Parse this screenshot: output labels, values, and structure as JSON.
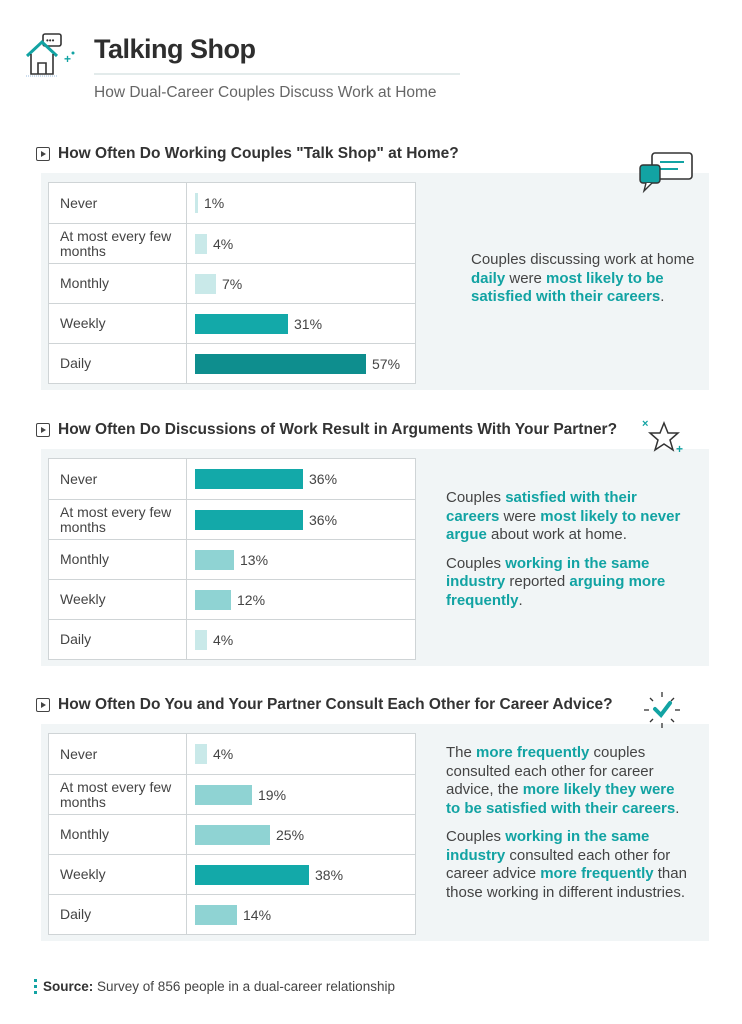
{
  "header": {
    "title": "Talking Shop",
    "subtitle": "How Dual-Career Couples Discuss Work at Home"
  },
  "colors": {
    "accent": "#12a3a3",
    "dark_bar": "#0e8e8e",
    "mid_bar": "#13a9a9",
    "light_bar": "#8fd3d3",
    "pale_bar": "#c9e9e9",
    "panel": "#f1f5f6"
  },
  "chart_data": [
    {
      "type": "bar",
      "orientation": "horizontal",
      "title": "How Often Do Working Couples \"Talk Shop\" at Home?",
      "categories": [
        "Never",
        "At most every few months",
        "Monthly",
        "Weekly",
        "Daily"
      ],
      "values": [
        1,
        4,
        7,
        31,
        57
      ],
      "unit": "%",
      "xlim": [
        0,
        60
      ],
      "icon": "chat-bubbles-icon",
      "note": [
        [
          {
            "t": "Couples discussing work at home "
          },
          {
            "t": "daily",
            "h": true
          },
          {
            "t": " were "
          },
          {
            "t": "most likely to be satisfied with their careers",
            "h": true
          },
          {
            "t": "."
          }
        ]
      ]
    },
    {
      "type": "bar",
      "orientation": "horizontal",
      "title": "How Often Do Discussions of Work Result in Arguments With Your Partner?",
      "categories": [
        "Never",
        "At most every few months",
        "Monthly",
        "Weekly",
        "Daily"
      ],
      "values": [
        36,
        36,
        13,
        12,
        4
      ],
      "unit": "%",
      "xlim": [
        0,
        60
      ],
      "icon": "star-icon",
      "note": [
        [
          {
            "t": "Couples "
          },
          {
            "t": "satisfied with their careers",
            "h": true
          },
          {
            "t": " were "
          },
          {
            "t": "most likely to never argue",
            "h": true
          },
          {
            "t": " about work at home."
          }
        ],
        [
          {
            "t": "Couples "
          },
          {
            "t": "working in the same industry",
            "h": true
          },
          {
            "t": " reported "
          },
          {
            "t": "arguing more frequently",
            "h": true
          },
          {
            "t": "."
          }
        ]
      ]
    },
    {
      "type": "bar",
      "orientation": "horizontal",
      "title": "How Often Do You and Your Partner Consult Each Other for Career Advice?",
      "categories": [
        "Never",
        "At most every few months",
        "Monthly",
        "Weekly",
        "Daily"
      ],
      "values": [
        4,
        19,
        25,
        38,
        14
      ],
      "unit": "%",
      "xlim": [
        0,
        60
      ],
      "icon": "checkmark-icon",
      "note": [
        [
          {
            "t": "The "
          },
          {
            "t": "more frequently",
            "h": true
          },
          {
            "t": " couples consulted each other for career advice, the "
          },
          {
            "t": "more likely they were to be satisfied with their careers",
            "h": true
          },
          {
            "t": "."
          }
        ],
        [
          {
            "t": "Couples "
          },
          {
            "t": "working in the same industry",
            "h": true
          },
          {
            "t": " consulted each other for career advice "
          },
          {
            "t": "more frequently",
            "h": true
          },
          {
            "t": " than those working in different industries."
          }
        ]
      ]
    }
  ],
  "source": {
    "label": "Source:",
    "text": "Survey of 856 people in a dual-career relationship"
  }
}
